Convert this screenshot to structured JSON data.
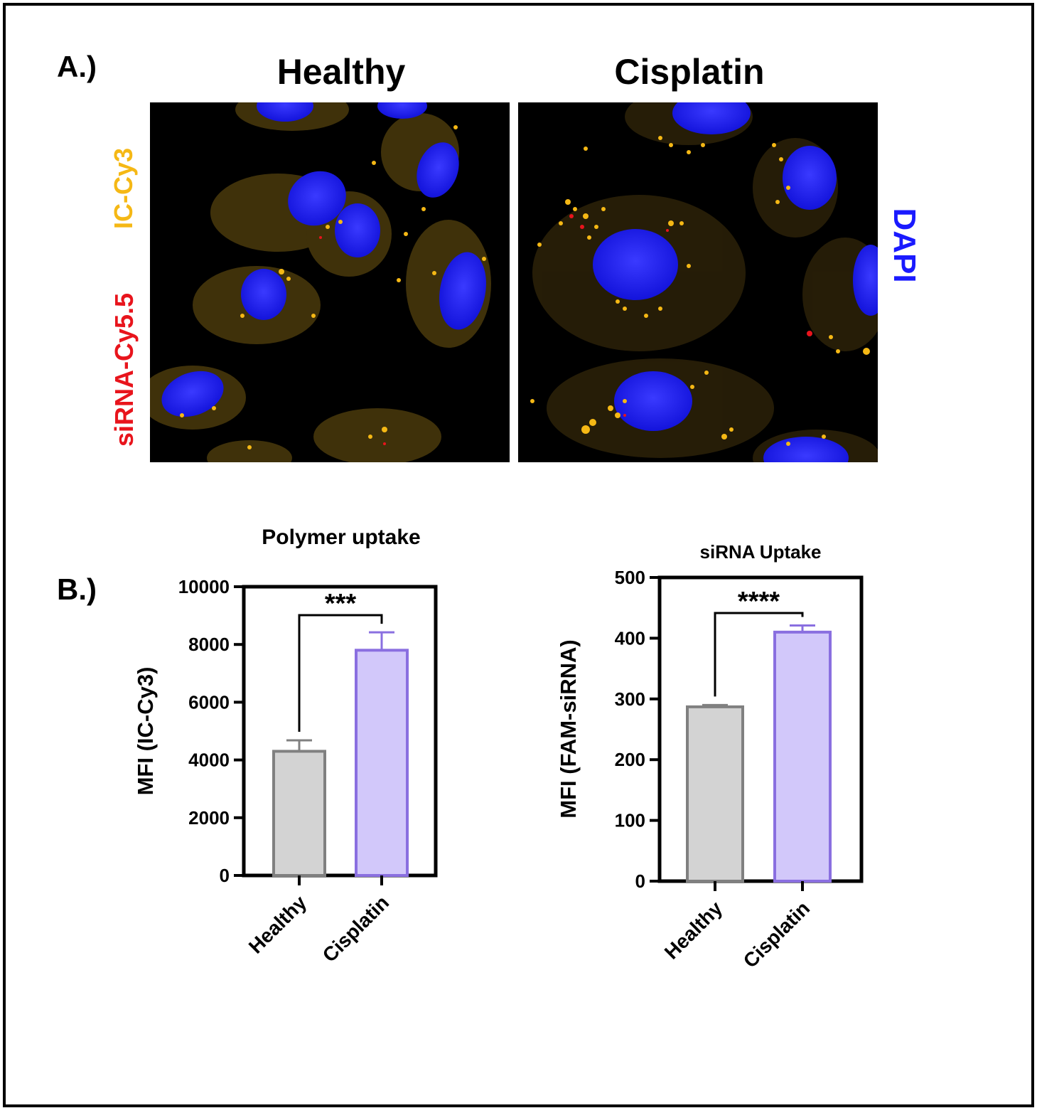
{
  "panel_a": {
    "label": "A.)",
    "columns": [
      "Healthy",
      "Cisplatin"
    ],
    "channel_labels": {
      "left_top": "IC-Cy3",
      "left_bottom": "siRNA-Cy5.5",
      "right": "DAPI"
    },
    "colors": {
      "ic_cy3": "#f5b815",
      "sirna": "#e8141c",
      "dapi": "#1a1aff"
    }
  },
  "panel_b": {
    "label": "B.)"
  },
  "chart_data": [
    {
      "type": "bar",
      "title": "Polymer uptake",
      "ylabel": "MFI (IC-Cy3)",
      "categories": [
        "Healthy",
        "Cisplatin"
      ],
      "values": [
        4300,
        7800
      ],
      "errors": [
        380,
        620
      ],
      "ylim": [
        0,
        10000
      ],
      "yticks": [
        0,
        2000,
        4000,
        6000,
        8000,
        10000
      ],
      "significance": "***",
      "fill_colors": [
        "#d3d3d3",
        "#d2c8fa"
      ],
      "edge_colors": [
        "#808080",
        "#8a6fe0"
      ]
    },
    {
      "type": "bar",
      "title": "siRNA Uptake",
      "ylabel": "MFI (FAM-siRNA)",
      "categories": [
        "Healthy",
        "Cisplatin"
      ],
      "values": [
        287,
        410
      ],
      "errors": [
        3,
        11
      ],
      "ylim": [
        0,
        500
      ],
      "yticks": [
        0,
        100,
        200,
        300,
        400,
        500
      ],
      "significance": "****",
      "fill_colors": [
        "#d3d3d3",
        "#d2c8fa"
      ],
      "edge_colors": [
        "#808080",
        "#8a6fe0"
      ]
    }
  ]
}
